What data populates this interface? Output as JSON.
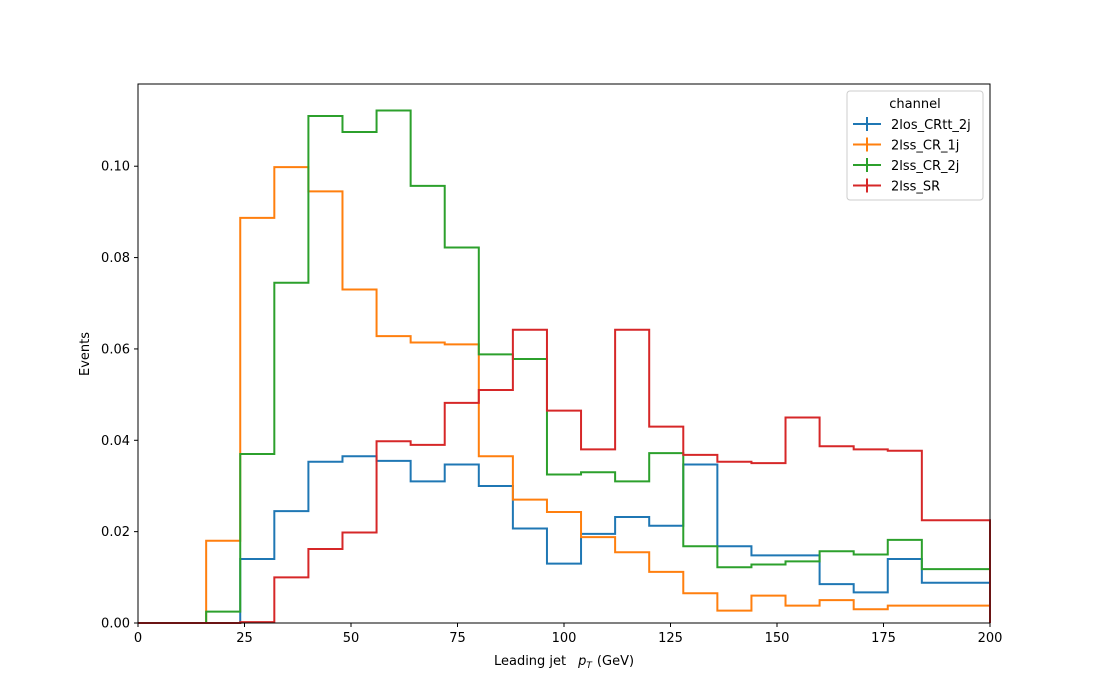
{
  "chart_data": {
    "type": "line",
    "drawstyle": "steps",
    "xlabel": "Leading jet",
    "xlabel_symbol": "p",
    "xlabel_sub": "T",
    "xlabel_unit": "(GeV)",
    "ylabel": "Events",
    "xlim": [
      0,
      200
    ],
    "ylim": [
      0,
      0.118
    ],
    "xticks": [
      0,
      25,
      50,
      75,
      100,
      125,
      150,
      175,
      200
    ],
    "yticks": [
      0.0,
      0.02,
      0.04,
      0.06,
      0.08,
      0.1
    ],
    "xtick_labels": [
      "0",
      "25",
      "50",
      "75",
      "100",
      "125",
      "150",
      "175",
      "200"
    ],
    "ytick_labels": [
      "0.00",
      "0.02",
      "0.04",
      "0.06",
      "0.08",
      "0.10"
    ],
    "grid": false,
    "legend": {
      "title": "channel",
      "position": "top-right"
    },
    "bin_edges": [
      0,
      8,
      16,
      24,
      32,
      40,
      48,
      56,
      64,
      72,
      80,
      88,
      96,
      104,
      112,
      120,
      128,
      136,
      144,
      152,
      160,
      168,
      176,
      184,
      192,
      200
    ],
    "series": [
      {
        "name": "2los_CRtt_2j",
        "color": "#1f77b4",
        "values": [
          0,
          0,
          0,
          0.014,
          0.0245,
          0.0353,
          0.0365,
          0.0355,
          0.031,
          0.0347,
          0.03,
          0.0207,
          0.013,
          0.0195,
          0.0232,
          0.0213,
          0.0347,
          0.0168,
          0.0148,
          0.0148,
          0.0085,
          0.0067,
          0.014,
          0.0088,
          0.0088
        ]
      },
      {
        "name": "2lss_CR_1j",
        "color": "#ff7f0e",
        "values": [
          0,
          0,
          0.018,
          0.0887,
          0.0998,
          0.0945,
          0.073,
          0.0628,
          0.0614,
          0.061,
          0.0365,
          0.027,
          0.0243,
          0.0188,
          0.0155,
          0.0112,
          0.0065,
          0.0027,
          0.006,
          0.0038,
          0.005,
          0.003,
          0.0038,
          0.0038,
          0.0038
        ]
      },
      {
        "name": "2lss_CR_2j",
        "color": "#2ca02c",
        "values": [
          0,
          0,
          0.0025,
          0.037,
          0.0745,
          0.111,
          0.1075,
          0.1122,
          0.0957,
          0.0822,
          0.0588,
          0.0578,
          0.0325,
          0.033,
          0.031,
          0.0372,
          0.0168,
          0.0122,
          0.0128,
          0.0135,
          0.0157,
          0.015,
          0.0182,
          0.0118,
          0.0118
        ]
      },
      {
        "name": "2lss_SR",
        "color": "#d62728",
        "values": [
          0,
          0,
          0,
          0.0002,
          0.01,
          0.0162,
          0.0198,
          0.0398,
          0.039,
          0.0482,
          0.051,
          0.0642,
          0.0465,
          0.038,
          0.0642,
          0.043,
          0.0368,
          0.0353,
          0.035,
          0.045,
          0.0387,
          0.038,
          0.0377,
          0.0225,
          0.0225
        ]
      }
    ]
  }
}
